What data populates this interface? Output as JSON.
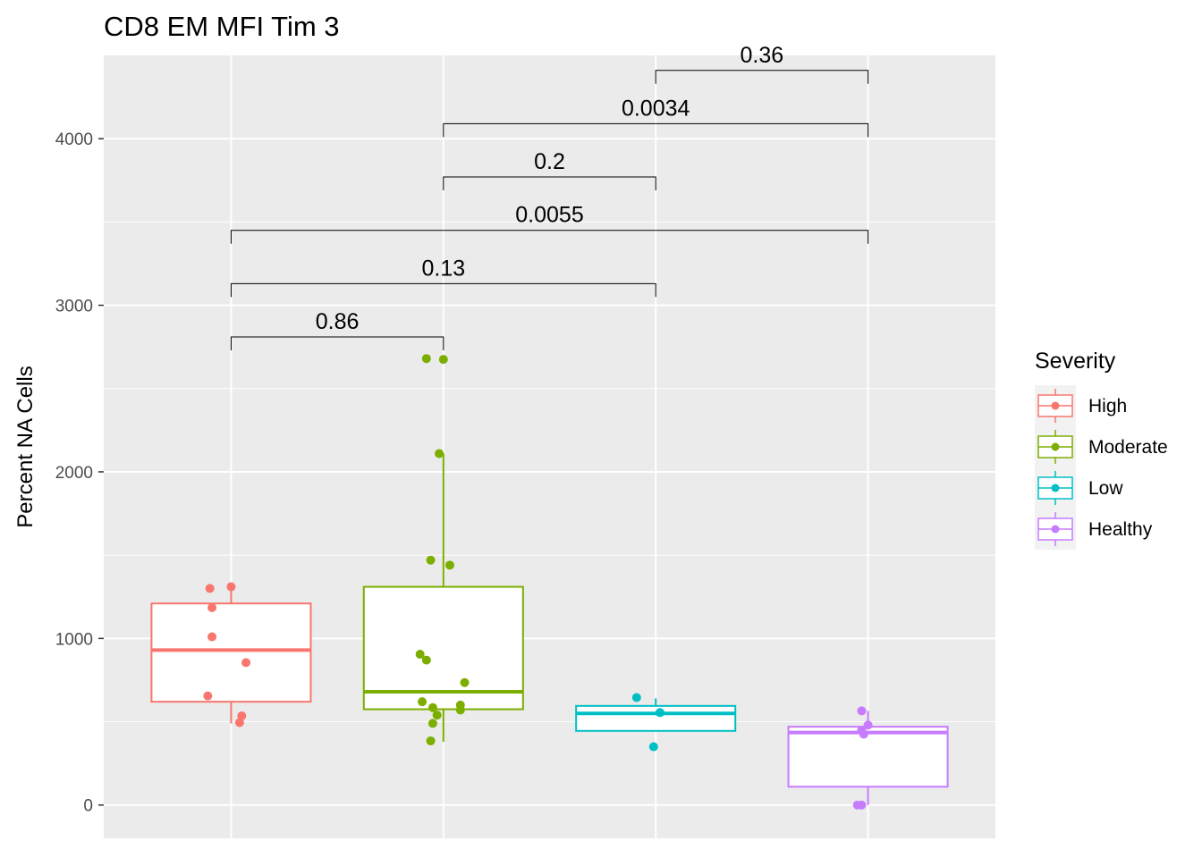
{
  "chart_data": {
    "type": "boxplot",
    "title": "CD8 EM MFI Tim 3",
    "xlabel": "",
    "ylabel": "Percent NA Cells",
    "ylim": [
      -200,
      4500
    ],
    "yticks": [
      0,
      1000,
      2000,
      3000,
      4000
    ],
    "grid": true,
    "legend": {
      "title": "Severity",
      "position": "right",
      "entries": [
        "High",
        "Moderate",
        "Low",
        "Healthy"
      ]
    },
    "series": [
      {
        "name": "High",
        "color": "#F8766D",
        "box": {
          "whisker_low": 490,
          "q1": 620,
          "median": 930,
          "q3": 1210,
          "whisker_high": 1310
        },
        "points": [
          [
            -0.1,
            1300
          ],
          [
            0.0,
            1310
          ],
          [
            -0.09,
            1185
          ],
          [
            -0.09,
            1010
          ],
          [
            0.07,
            855
          ],
          [
            -0.11,
            655
          ],
          [
            0.05,
            535
          ],
          [
            0.04,
            495
          ]
        ]
      },
      {
        "name": "Moderate",
        "color": "#7CAE00",
        "box": {
          "whisker_low": 380,
          "q1": 575,
          "median": 680,
          "q3": 1310,
          "whisker_high": 2110
        },
        "points": [
          [
            -0.08,
            2680
          ],
          [
            0.0,
            2675
          ],
          [
            -0.02,
            2110
          ],
          [
            -0.06,
            1470
          ],
          [
            0.03,
            1440
          ],
          [
            -0.11,
            905
          ],
          [
            -0.08,
            870
          ],
          [
            0.1,
            735
          ],
          [
            -0.1,
            620
          ],
          [
            -0.05,
            585
          ],
          [
            0.08,
            600
          ],
          [
            0.08,
            570
          ],
          [
            -0.03,
            540
          ],
          [
            -0.05,
            490
          ],
          [
            -0.06,
            385
          ]
        ]
      },
      {
        "name": "Low",
        "color": "#00BFC4",
        "box": {
          "whisker_low": 445,
          "q1": 445,
          "median": 550,
          "q3": 595,
          "whisker_high": 640
        },
        "points": [
          [
            -0.09,
            645
          ],
          [
            0.02,
            555
          ],
          [
            -0.01,
            350
          ]
        ]
      },
      {
        "name": "Healthy",
        "color": "#C77CFF",
        "box": {
          "whisker_low": 0,
          "q1": 110,
          "median": 435,
          "q3": 470,
          "whisker_high": 565
        },
        "points": [
          [
            -0.03,
            565
          ],
          [
            0.0,
            480
          ],
          [
            -0.03,
            450
          ],
          [
            -0.02,
            425
          ],
          [
            -0.05,
            0
          ],
          [
            -0.03,
            0
          ]
        ]
      }
    ],
    "comparisons": [
      {
        "from": 1,
        "to": 2,
        "y": 2810,
        "label": "0.86"
      },
      {
        "from": 1,
        "to": 3,
        "y": 3130,
        "label": "0.13"
      },
      {
        "from": 1,
        "to": 4,
        "y": 3450,
        "label": "0.0055"
      },
      {
        "from": 2,
        "to": 3,
        "y": 3770,
        "label": "0.2"
      },
      {
        "from": 2,
        "to": 4,
        "y": 4090,
        "label": "0.0034"
      },
      {
        "from": 3,
        "to": 4,
        "y": 4410,
        "label": "0.36"
      }
    ]
  }
}
